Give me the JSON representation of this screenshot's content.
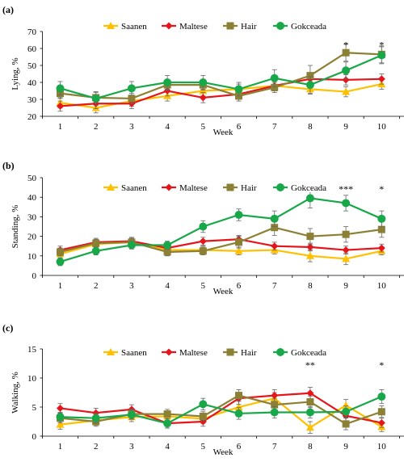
{
  "legend": [
    "Saanen",
    "Maltese",
    "Hair",
    "Gokceada"
  ],
  "chart_data": [
    {
      "panel": "(a)",
      "type": "line",
      "xlabel": "Week",
      "ylabel": "Lying, %",
      "ylim": [
        20,
        70
      ],
      "yticks": [
        20,
        30,
        40,
        50,
        60,
        70
      ],
      "x": [
        1,
        2,
        3,
        4,
        5,
        6,
        7,
        8,
        9,
        10
      ],
      "series": [
        {
          "name": "Saanen",
          "color": "#FFC000",
          "marker": "triangle",
          "values": [
            28,
            25,
            29,
            32,
            35,
            36,
            38,
            36,
            34.5,
            39
          ],
          "errors": [
            3,
            3,
            3,
            3,
            3,
            3,
            3,
            3,
            3,
            3
          ]
        },
        {
          "name": "Maltese",
          "color": "#E4161C",
          "marker": "diamond",
          "values": [
            26,
            27.5,
            27.5,
            35,
            31,
            33,
            38,
            42,
            41.5,
            42
          ],
          "errors": [
            3,
            3,
            3,
            3,
            3,
            3,
            3,
            3,
            3,
            3
          ]
        },
        {
          "name": "Hair",
          "color": "#8C8035",
          "marker": "square",
          "values": [
            33.5,
            31,
            30.5,
            38.5,
            38.5,
            32,
            37,
            44,
            57.5,
            56.5
          ],
          "errors": [
            3,
            3,
            3,
            3,
            3,
            3,
            3,
            6,
            5,
            5
          ]
        },
        {
          "name": "Gokceada",
          "color": "#18A84A",
          "marker": "circle",
          "values": [
            36.5,
            30.5,
            36.5,
            40,
            40,
            36,
            42.5,
            38.5,
            47,
            56
          ],
          "errors": [
            4,
            4,
            4,
            4,
            4,
            4,
            5,
            5,
            5,
            5
          ]
        }
      ],
      "annotations": [
        {
          "week": 9,
          "text": "*",
          "y": 63
        },
        {
          "week": 10,
          "text": "*",
          "y": 63
        }
      ]
    },
    {
      "panel": "(b)",
      "type": "line",
      "xlabel": "Week",
      "ylabel": "Standing, %",
      "ylim": [
        0,
        50
      ],
      "yticks": [
        0,
        10,
        20,
        30,
        40,
        50
      ],
      "x": [
        1,
        2,
        3,
        4,
        5,
        6,
        7,
        8,
        9,
        10
      ],
      "series": [
        {
          "name": "Saanen",
          "color": "#FFC000",
          "marker": "triangle",
          "values": [
            11,
            16,
            17,
            13,
            13,
            12.5,
            13,
            10,
            8.5,
            12.5
          ],
          "errors": [
            2,
            2,
            2,
            2,
            2,
            2,
            2,
            3,
            3,
            2
          ]
        },
        {
          "name": "Maltese",
          "color": "#E4161C",
          "marker": "diamond",
          "values": [
            13,
            17,
            17.5,
            14,
            17.5,
            18.5,
            15,
            14.5,
            13,
            14
          ],
          "errors": [
            2,
            2,
            2,
            2,
            2,
            2,
            2,
            2,
            2,
            2
          ]
        },
        {
          "name": "Hair",
          "color": "#8C8035",
          "marker": "square",
          "values": [
            12,
            16.5,
            17,
            12,
            12.5,
            17,
            24.5,
            20,
            21,
            23.5
          ],
          "errors": [
            2,
            2,
            2,
            2,
            2,
            3,
            4,
            4,
            4,
            4
          ]
        },
        {
          "name": "Gokceada",
          "color": "#18A84A",
          "marker": "circle",
          "values": [
            7,
            12.5,
            15.5,
            15.5,
            25,
            31,
            29,
            39.5,
            37,
            29
          ],
          "errors": [
            2,
            2,
            2,
            2,
            3,
            3,
            4,
            5,
            4,
            4
          ]
        }
      ],
      "annotations": [
        {
          "week": 5,
          "text": "*",
          "y": 45
        },
        {
          "week": 6,
          "text": "***",
          "y": 45
        },
        {
          "week": 7,
          "text": "*",
          "y": 45
        },
        {
          "week": 8,
          "text": "***",
          "y": 45
        },
        {
          "week": 9,
          "text": "***",
          "y": 45
        },
        {
          "week": 10,
          "text": "*",
          "y": 45
        }
      ]
    },
    {
      "panel": "(c)",
      "type": "line",
      "xlabel": "Week",
      "ylabel": "Walking, %",
      "ylim": [
        0,
        15
      ],
      "yticks": [
        0,
        5,
        10,
        15
      ],
      "x": [
        1,
        2,
        3,
        4,
        5,
        6,
        7,
        8,
        9,
        10
      ],
      "series": [
        {
          "name": "Saanen",
          "color": "#FFC000",
          "marker": "triangle",
          "values": [
            2,
            2.7,
            3.3,
            3.4,
            3,
            5,
            6.5,
            1.5,
            5.3,
            1.6
          ],
          "errors": [
            0.8,
            0.8,
            0.8,
            0.8,
            0.8,
            1,
            1,
            1,
            1,
            0.8
          ]
        },
        {
          "name": "Maltese",
          "color": "#E4161C",
          "marker": "diamond",
          "values": [
            4.8,
            4,
            4.6,
            2.2,
            2.5,
            6.5,
            7,
            7.4,
            3.5,
            2.3
          ],
          "errors": [
            0.8,
            0.8,
            0.8,
            0.8,
            0.8,
            1,
            1,
            1,
            1,
            0.8
          ]
        },
        {
          "name": "Hair",
          "color": "#8C8035",
          "marker": "square",
          "values": [
            3.1,
            2.5,
            3.8,
            3.8,
            3.4,
            7,
            5.4,
            5.9,
            2.1,
            4.2
          ],
          "errors": [
            0.8,
            0.8,
            0.8,
            0.8,
            0.8,
            1,
            1,
            1,
            1,
            1
          ]
        },
        {
          "name": "Gokceada",
          "color": "#18A84A",
          "marker": "circle",
          "values": [
            3.3,
            3.1,
            3.7,
            2.2,
            5.5,
            3.9,
            4.1,
            4.1,
            4.2,
            6.8
          ],
          "errors": [
            0.8,
            0.8,
            0.8,
            0.8,
            1,
            1,
            1,
            1,
            1,
            1.2
          ]
        }
      ],
      "annotations": [
        {
          "week": 8,
          "text": "**",
          "y": 12.5
        },
        {
          "week": 10,
          "text": "*",
          "y": 12.5
        }
      ]
    }
  ]
}
